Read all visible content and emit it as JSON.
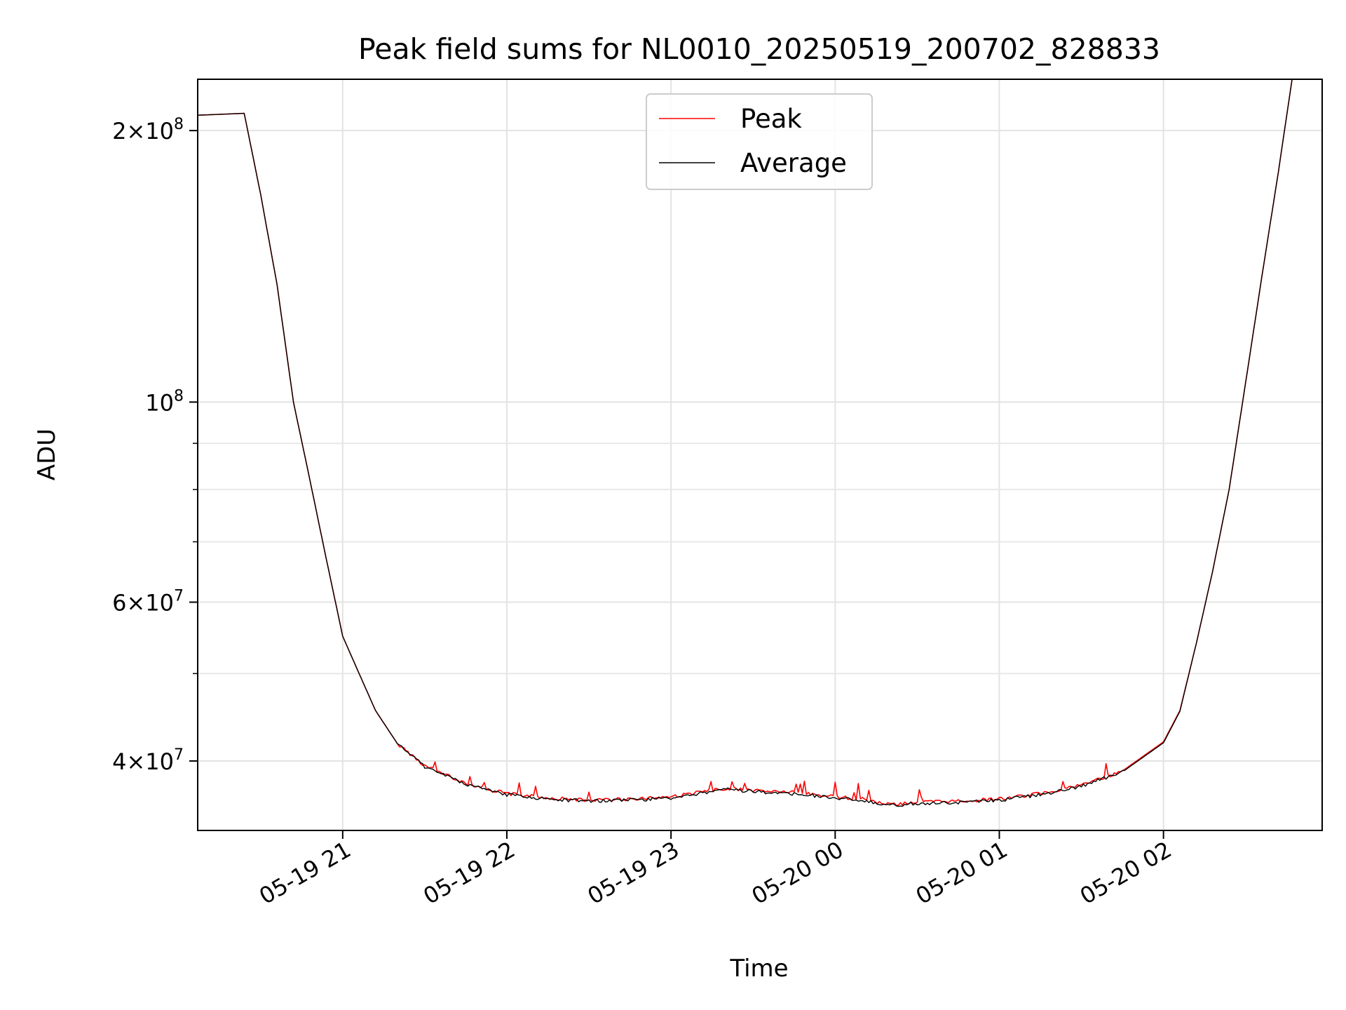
{
  "chart_data": {
    "type": "line",
    "title": "Peak field sums for NL0010_20250519_200702_828833",
    "xlabel": "Time",
    "ylabel": "ADU",
    "y_scale": "log",
    "ylim": [
      33500000,
      228000000
    ],
    "xlim": [
      "2025-05-19 20:07",
      "2025-05-20 02:58"
    ],
    "x_ticks": [
      {
        "label": "05-19 21",
        "time": "2025-05-19 21:00"
      },
      {
        "label": "05-19 22",
        "time": "2025-05-19 22:00"
      },
      {
        "label": "05-19 23",
        "time": "2025-05-19 23:00"
      },
      {
        "label": "05-20 00",
        "time": "2025-05-20 00:00"
      },
      {
        "label": "05-20 01",
        "time": "2025-05-20 01:00"
      },
      {
        "label": "05-20 02",
        "time": "2025-05-20 02:00"
      }
    ],
    "y_major_ticks": [
      {
        "label": "2×10^8",
        "mantissa": "2",
        "exponent": "8",
        "value": 200000000
      },
      {
        "label": "10^8",
        "mantissa": "",
        "exponent": "8",
        "value": 100000000
      },
      {
        "label": "6×10^7",
        "mantissa": "6",
        "exponent": "7",
        "value": 60000000
      },
      {
        "label": "4×10^7",
        "mantissa": "4",
        "exponent": "7",
        "value": 40000000
      }
    ],
    "y_minor_ticks": [
      90000000,
      80000000,
      70000000,
      50000000
    ],
    "grid": true,
    "legend_position": "top-center",
    "series": [
      {
        "name": "Peak",
        "color": "#ff0000",
        "points": [
          [
            "2025-05-19 20:07",
            208000000
          ],
          [
            "2025-05-19 20:24",
            209000000
          ],
          [
            "2025-05-19 20:30",
            170000000
          ],
          [
            "2025-05-19 20:36",
            135000000
          ],
          [
            "2025-05-19 20:42",
            100000000
          ],
          [
            "2025-05-19 20:48",
            82000000
          ],
          [
            "2025-05-19 20:54",
            67000000
          ],
          [
            "2025-05-19 21:00",
            55000000
          ],
          [
            "2025-05-19 21:06",
            50000000
          ],
          [
            "2025-05-19 21:12",
            45500000
          ],
          [
            "2025-05-19 21:20",
            41800000
          ],
          [
            "2025-05-19 21:30",
            39500000
          ],
          [
            "2025-05-19 21:45",
            37800000
          ],
          [
            "2025-05-19 22:00",
            36800000
          ],
          [
            "2025-05-19 22:15",
            36400000
          ],
          [
            "2025-05-19 22:30",
            36200000
          ],
          [
            "2025-05-19 22:45",
            36300000
          ],
          [
            "2025-05-19 23:00",
            36500000
          ],
          [
            "2025-05-19 23:10",
            36900000
          ],
          [
            "2025-05-19 23:20",
            37300000
          ],
          [
            "2025-05-19 23:30",
            37100000
          ],
          [
            "2025-05-19 23:45",
            36900000
          ],
          [
            "2025-05-20 00:00",
            36500000
          ],
          [
            "2025-05-20 00:10",
            36300000
          ],
          [
            "2025-05-20 00:20",
            35800000
          ],
          [
            "2025-05-20 00:30",
            36000000
          ],
          [
            "2025-05-20 00:45",
            36100000
          ],
          [
            "2025-05-20 01:00",
            36300000
          ],
          [
            "2025-05-20 01:15",
            36800000
          ],
          [
            "2025-05-20 01:30",
            37600000
          ],
          [
            "2025-05-20 01:45",
            39000000
          ],
          [
            "2025-05-20 02:00",
            42000000
          ],
          [
            "2025-05-20 02:06",
            45500000
          ],
          [
            "2025-05-20 02:12",
            54000000
          ],
          [
            "2025-05-20 02:18",
            65000000
          ],
          [
            "2025-05-20 02:24",
            80000000
          ],
          [
            "2025-05-20 02:30",
            105000000
          ],
          [
            "2025-05-20 02:36",
            138000000
          ],
          [
            "2025-05-20 02:42",
            180000000
          ],
          [
            "2025-05-20 02:47",
            228000000
          ]
        ]
      },
      {
        "name": "Average",
        "color": "#000000",
        "points": [
          [
            "2025-05-19 20:07",
            208000000
          ],
          [
            "2025-05-19 20:24",
            209000000
          ],
          [
            "2025-05-19 20:30",
            170000000
          ],
          [
            "2025-05-19 20:36",
            135000000
          ],
          [
            "2025-05-19 20:42",
            100000000
          ],
          [
            "2025-05-19 20:48",
            82000000
          ],
          [
            "2025-05-19 20:54",
            67000000
          ],
          [
            "2025-05-19 21:00",
            55000000
          ],
          [
            "2025-05-19 21:06",
            50000000
          ],
          [
            "2025-05-19 21:12",
            45500000
          ],
          [
            "2025-05-19 21:20",
            41800000
          ],
          [
            "2025-05-19 21:30",
            39400000
          ],
          [
            "2025-05-19 21:45",
            37700000
          ],
          [
            "2025-05-19 22:00",
            36700000
          ],
          [
            "2025-05-19 22:15",
            36300000
          ],
          [
            "2025-05-19 22:30",
            36100000
          ],
          [
            "2025-05-19 22:45",
            36200000
          ],
          [
            "2025-05-19 23:00",
            36400000
          ],
          [
            "2025-05-19 23:10",
            36800000
          ],
          [
            "2025-05-19 23:20",
            37200000
          ],
          [
            "2025-05-19 23:30",
            37000000
          ],
          [
            "2025-05-19 23:45",
            36800000
          ],
          [
            "2025-05-20 00:00",
            36400000
          ],
          [
            "2025-05-20 00:10",
            36200000
          ],
          [
            "2025-05-20 00:20",
            35700000
          ],
          [
            "2025-05-20 00:30",
            35900000
          ],
          [
            "2025-05-20 00:45",
            36000000
          ],
          [
            "2025-05-20 01:00",
            36200000
          ],
          [
            "2025-05-20 01:15",
            36700000
          ],
          [
            "2025-05-20 01:30",
            37500000
          ],
          [
            "2025-05-20 01:45",
            38900000
          ],
          [
            "2025-05-20 02:00",
            41900000
          ],
          [
            "2025-05-20 02:06",
            45400000
          ],
          [
            "2025-05-20 02:12",
            54000000
          ],
          [
            "2025-05-20 02:18",
            65000000
          ],
          [
            "2025-05-20 02:24",
            80000000
          ],
          [
            "2025-05-20 02:30",
            105000000
          ],
          [
            "2025-05-20 02:36",
            138000000
          ],
          [
            "2025-05-20 02:42",
            180000000
          ],
          [
            "2025-05-20 02:47",
            228000000
          ]
        ]
      }
    ]
  }
}
